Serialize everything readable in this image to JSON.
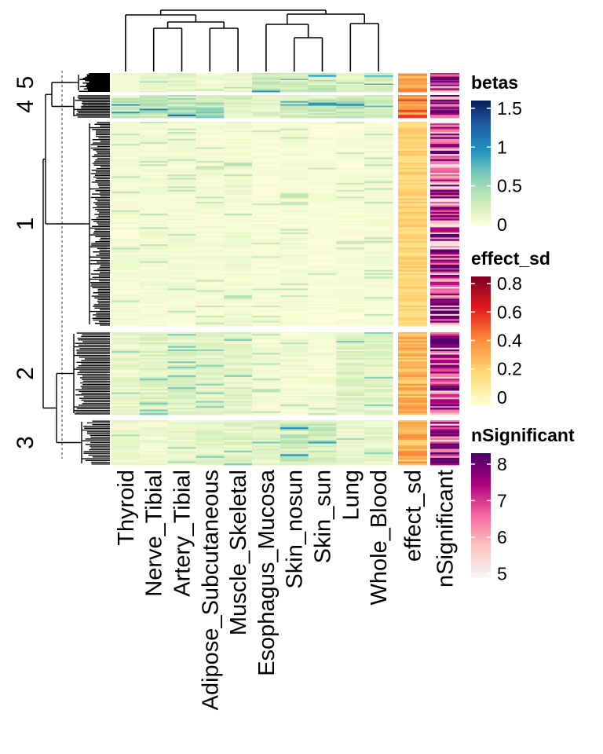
{
  "chart_data": {
    "type": "heatmap",
    "columns": [
      "Thyroid",
      "Nerve_Tibial",
      "Artery_Tibial",
      "Adipose_Subcutaneous",
      "Muscle_Skeletal",
      "Esophagus_Mucosa",
      "Skin_nosun",
      "Skin_sun",
      "Lung",
      "Whole_Blood"
    ],
    "annotation_columns": [
      "effect_sd",
      "nSignificant"
    ],
    "row_clusters": [
      {
        "label": "5",
        "rows": 16,
        "betas_mean": [
          0.08,
          0.12,
          0.16,
          0.08,
          0.1,
          0.3,
          0.22,
          0.3,
          0.15,
          0.24
        ],
        "effect_sd_mean": 0.36,
        "nSignificant_mean": 7.2
      },
      {
        "label": "4",
        "rows": 15,
        "betas_mean": [
          0.28,
          0.32,
          0.38,
          0.45,
          0.2,
          0.15,
          0.22,
          0.28,
          0.35,
          0.22
        ],
        "effect_sd_mean": 0.42,
        "nSignificant_mean": 7.3
      },
      {
        "label": "1",
        "rows": 120,
        "betas_mean": [
          0.07,
          0.07,
          0.07,
          0.06,
          0.08,
          0.05,
          0.06,
          0.05,
          0.05,
          0.07
        ],
        "effect_sd_mean": 0.18,
        "nSignificant_mean": 6.6
      },
      {
        "label": "2",
        "rows": 48,
        "betas_mean": [
          0.12,
          0.18,
          0.18,
          0.15,
          0.17,
          0.08,
          0.08,
          0.07,
          0.18,
          0.16
        ],
        "effect_sd_mean": 0.28,
        "nSignificant_mean": 7.0
      },
      {
        "label": "3",
        "rows": 25,
        "betas_mean": [
          0.1,
          0.09,
          0.11,
          0.16,
          0.17,
          0.18,
          0.28,
          0.26,
          0.11,
          0.14
        ],
        "effect_sd_mean": 0.3,
        "nSignificant_mean": 7.0
      }
    ],
    "column_dendrogram_order": "((Thyroid, ((Nerve_Tibial, Artery_Tibial), (Adipose_Subcutaneous, Muscle_Skeletal))), ((Esophagus_Mucosa, (Skin_nosun, Skin_sun)), (Lung, Whole_Blood)))",
    "legends": [
      {
        "title": "betas",
        "ticks": [
          "1.5",
          "1",
          "0.5",
          "0"
        ],
        "tick_values": [
          1.5,
          1,
          0.5,
          0
        ],
        "range": [
          0,
          1.6
        ],
        "colors": [
          "#FFFFD9",
          "#C7E9B4",
          "#7FCDBB",
          "#1D91C0",
          "#225EA8",
          "#081D58"
        ]
      },
      {
        "title": "effect_sd",
        "ticks": [
          "0.8",
          "0.6",
          "0.4",
          "0.2",
          "0"
        ],
        "tick_values": [
          0.8,
          0.6,
          0.4,
          0.2,
          0
        ],
        "range": [
          -0.05,
          0.85
        ],
        "colors": [
          "#FFFFCC",
          "#FED976",
          "#FD8D3C",
          "#E31A1C",
          "#800026"
        ]
      },
      {
        "title": "nSignificant",
        "ticks": [
          "8",
          "7",
          "6",
          "5"
        ],
        "tick_values": [
          8,
          7,
          6,
          5
        ],
        "range": [
          4.9,
          8.3
        ],
        "colors": [
          "#F7F4F9",
          "#FCC5C0",
          "#F768A1",
          "#AE017E",
          "#49006A"
        ]
      }
    ]
  }
}
